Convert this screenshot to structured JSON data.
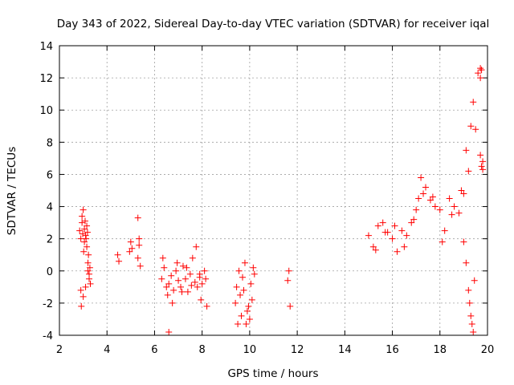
{
  "chart_data": {
    "type": "scatter",
    "title": "Day 343 of 2022, Sidereal Day-to-day VTEC variation (SDTVAR) for receiver iqal",
    "xlabel": "GPS time / hours",
    "ylabel": "SDTVAR / TECUs",
    "xlim": [
      2,
      20
    ],
    "ylim": [
      -4,
      14
    ],
    "xticks": [
      "2",
      "4",
      "6",
      "8",
      "10",
      "12",
      "14",
      "16",
      "18",
      "20"
    ],
    "yticks": [
      "-4",
      "-2",
      "0",
      "2",
      "4",
      "6",
      "8",
      "10",
      "12",
      "14"
    ],
    "grid": true,
    "marker": "+",
    "color": "#ff0000",
    "series": [
      {
        "name": "SDTVAR",
        "x": [
          2.85,
          2.9,
          2.95,
          3.0,
          3.05,
          3.1,
          3.15,
          3.2,
          3.25,
          3.3,
          2.9,
          3.0,
          3.1,
          3.2,
          2.95,
          3.05,
          3.15,
          2.92,
          3.02,
          3.12,
          3.22,
          3.28,
          2.98,
          3.08,
          3.18,
          3.25,
          4.45,
          4.5,
          4.95,
          5.0,
          5.05,
          5.3,
          5.35,
          5.4,
          5.3,
          5.35,
          6.3,
          6.4,
          6.5,
          6.6,
          6.7,
          6.8,
          6.9,
          7.0,
          7.1,
          7.2,
          7.3,
          7.4,
          7.5,
          7.6,
          7.7,
          7.8,
          7.9,
          8.0,
          8.1,
          8.2,
          6.35,
          6.55,
          6.75,
          6.95,
          7.15,
          7.35,
          7.55,
          7.75,
          7.95,
          8.15,
          6.6,
          7.9,
          9.4,
          9.5,
          9.6,
          9.7,
          9.8,
          9.9,
          10.0,
          10.1,
          10.2,
          9.45,
          9.65,
          9.85,
          10.05,
          9.55,
          9.75,
          9.95,
          10.15,
          11.6,
          11.7,
          11.65,
          15.0,
          15.2,
          15.4,
          15.6,
          15.8,
          16.0,
          16.2,
          16.4,
          16.6,
          16.8,
          17.0,
          17.1,
          17.2,
          17.4,
          17.6,
          17.8,
          18.0,
          18.2,
          18.4,
          18.6,
          18.8,
          19.0,
          19.1,
          19.2,
          19.3,
          19.4,
          19.5,
          19.6,
          19.7,
          19.8,
          15.3,
          15.7,
          16.1,
          16.5,
          16.9,
          17.3,
          17.7,
          18.1,
          18.5,
          18.9,
          19.0,
          19.1,
          19.2,
          19.25,
          19.3,
          19.35,
          19.4,
          19.45,
          19.7,
          19.75,
          19.8,
          19.7,
          19.75
        ],
        "y": [
          2.5,
          2.0,
          3.0,
          3.8,
          2.6,
          2.2,
          1.5,
          0.5,
          -0.2,
          -0.8,
          -1.2,
          -1.6,
          -1.0,
          0.0,
          3.4,
          1.8,
          2.8,
          -2.2,
          1.2,
          2.0,
          1.0,
          0.2,
          2.3,
          3.1,
          2.4,
          -0.5,
          1.0,
          0.6,
          1.2,
          1.8,
          1.4,
          3.3,
          1.6,
          0.3,
          0.8,
          2.0,
          -0.5,
          0.2,
          -1.0,
          -0.8,
          -0.3,
          -1.2,
          0.0,
          -0.6,
          -1.0,
          0.3,
          -0.5,
          -1.3,
          -0.2,
          0.8,
          -0.7,
          -1.0,
          -0.4,
          -0.8,
          0.0,
          -2.2,
          0.8,
          -1.5,
          -2.0,
          0.5,
          -1.3,
          0.2,
          -0.9,
          1.5,
          -1.8,
          -0.5,
          -3.8,
          -0.2,
          -2.0,
          -3.3,
          -1.5,
          -0.4,
          0.5,
          -2.5,
          -3.0,
          -1.8,
          -0.2,
          -1.0,
          -2.8,
          -3.3,
          -0.8,
          0.0,
          -1.2,
          -2.2,
          0.2,
          -0.6,
          -2.2,
          0.0,
          2.2,
          1.5,
          2.8,
          3.0,
          2.4,
          2.0,
          1.2,
          2.5,
          2.2,
          3.0,
          3.8,
          4.5,
          5.8,
          5.2,
          4.4,
          4.0,
          3.8,
          2.5,
          4.5,
          4.0,
          3.6,
          4.8,
          7.5,
          6.2,
          9.0,
          10.5,
          8.8,
          12.3,
          12.6,
          6.8,
          1.3,
          2.4,
          2.8,
          1.5,
          3.2,
          4.8,
          4.6,
          1.8,
          3.5,
          5.0,
          1.8,
          0.5,
          -1.2,
          -2.0,
          -2.8,
          -3.3,
          -3.8,
          -0.6,
          7.2,
          6.5,
          6.3,
          12.0,
          12.5
        ]
      }
    ]
  }
}
